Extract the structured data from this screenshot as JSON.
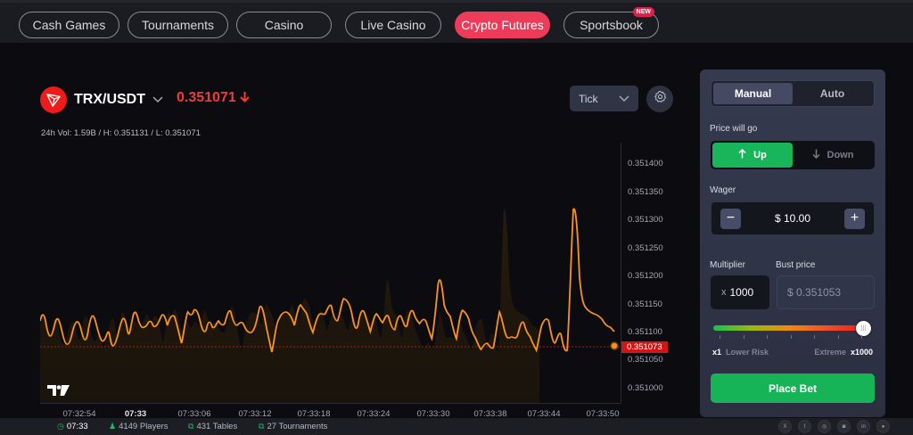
{
  "nav": {
    "tabs": [
      {
        "label": "Cash Games",
        "active": false
      },
      {
        "label": "Tournaments",
        "active": false
      },
      {
        "label": "Casino",
        "active": false
      },
      {
        "label": "Live Casino",
        "active": false
      },
      {
        "label": "Crypto Futures",
        "active": true
      },
      {
        "label": "Sportsbook",
        "active": false,
        "badge": "NEW"
      }
    ]
  },
  "market": {
    "pair": "TRX/USDT",
    "price": "0.351071",
    "direction_icon": "arrow-down-icon",
    "stats": "24h Vol: 1.59B / H: 0.351131 / L: 0.351071",
    "chart_type": "Tick"
  },
  "chart": {
    "y_ticks": [
      "0.351400",
      "0.351350",
      "0.351300",
      "0.351250",
      "0.351200",
      "0.351150",
      "0.351100",
      "0.351050",
      "0.351000"
    ],
    "current_price_tag": "0.351073",
    "x_ticks": [
      {
        "label": "07:32:54",
        "bold": false
      },
      {
        "label": "07:33",
        "bold": true
      },
      {
        "label": "07:33:06",
        "bold": false
      },
      {
        "label": "07:33:12",
        "bold": false
      },
      {
        "label": "07:33:18",
        "bold": false
      },
      {
        "label": "07:33:24",
        "bold": false
      },
      {
        "label": "07:33:30",
        "bold": false
      },
      {
        "label": "07:33:38",
        "bold": false
      },
      {
        "label": "07:33:44",
        "bold": false
      },
      {
        "label": "07:33:50",
        "bold": false
      }
    ],
    "line_color": "#f7931a",
    "reference_line_color": "#b01818"
  },
  "panel": {
    "mode_tabs": [
      "Manual",
      "Auto"
    ],
    "active_mode": "Manual",
    "direction_label": "Price will go",
    "up_label": "Up",
    "down_label": "Down",
    "selected_direction": "Up",
    "wager_label": "Wager",
    "wager_value": "$ 10.00",
    "multiplier_label": "Multiplier",
    "multiplier_prefix": "x",
    "multiplier_value": "1000",
    "bust_label": "Bust price",
    "bust_value": "$ 0.351053",
    "risk_min": "x1",
    "risk_min_label": "Lower Risk",
    "risk_max_label": "Extreme",
    "risk_max": "x1000",
    "place_bet_label": "Place Bet"
  },
  "footer": {
    "time": "07:33",
    "players": "4149 Players",
    "tables": "431 Tables",
    "tournaments": "27 Tournaments",
    "socials": [
      "x-icon",
      "facebook-icon",
      "instagram-icon",
      "discord-icon",
      "linkedin-icon",
      "reddit-icon"
    ]
  }
}
